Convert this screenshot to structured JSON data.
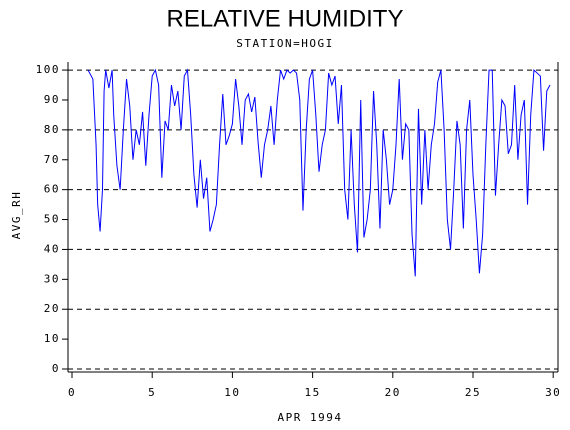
{
  "chart_data": {
    "type": "line",
    "title": "RELATIVE HUMIDITY",
    "subtitle": "STATION=HOGI",
    "xlabel": "APR 1994",
    "ylabel": "AVG_RH",
    "color": "#0000ff",
    "xlim": [
      -0.25,
      30.3
    ],
    "ylim": [
      -1,
      102.7
    ],
    "xticks": [
      0,
      5,
      10,
      15,
      20,
      25,
      30
    ],
    "yticks": [
      0,
      10,
      20,
      30,
      40,
      50,
      60,
      70,
      80,
      90,
      100
    ],
    "hlines": [
      0,
      20,
      40,
      60,
      80,
      100
    ],
    "x": [
      1.0,
      1.3,
      1.5,
      1.6,
      1.75,
      1.9,
      2.0,
      2.1,
      2.3,
      2.5,
      2.6,
      2.8,
      3.0,
      3.2,
      3.4,
      3.6,
      3.8,
      4.0,
      4.2,
      4.4,
      4.6,
      4.8,
      5.0,
      5.2,
      5.4,
      5.6,
      5.8,
      6.0,
      6.2,
      6.4,
      6.6,
      6.8,
      7.0,
      7.2,
      7.4,
      7.6,
      7.8,
      8.0,
      8.2,
      8.4,
      8.6,
      8.8,
      9.0,
      9.2,
      9.4,
      9.6,
      9.8,
      10.0,
      10.2,
      10.4,
      10.6,
      10.8,
      11.0,
      11.2,
      11.4,
      11.6,
      11.8,
      12.0,
      12.2,
      12.4,
      12.6,
      12.8,
      13.0,
      13.2,
      13.4,
      13.6,
      13.8,
      14.0,
      14.2,
      14.4,
      14.6,
      14.8,
      15.0,
      15.2,
      15.4,
      15.6,
      15.8,
      16.0,
      16.2,
      16.4,
      16.6,
      16.8,
      17.0,
      17.2,
      17.4,
      17.6,
      17.8,
      18.0,
      18.2,
      18.4,
      18.6,
      18.8,
      19.0,
      19.2,
      19.4,
      19.6,
      19.8,
      20.0,
      20.2,
      20.4,
      20.6,
      20.8,
      21.0,
      21.2,
      21.4,
      21.6,
      21.8,
      22.0,
      22.2,
      22.4,
      22.6,
      22.8,
      23.0,
      23.2,
      23.4,
      23.6,
      23.8,
      24.0,
      24.2,
      24.4,
      24.6,
      24.8,
      25.0,
      25.2,
      25.4,
      25.6,
      25.8,
      26.0,
      26.2,
      26.4,
      26.6,
      26.8,
      27.0,
      27.2,
      27.4,
      27.6,
      27.8,
      28.0,
      28.2,
      28.4,
      28.6,
      28.8,
      29.0,
      29.2,
      29.4,
      29.6,
      29.8
    ],
    "values": [
      100,
      97,
      75,
      55,
      46,
      60,
      93,
      100,
      94,
      100,
      85,
      68,
      60,
      80,
      97,
      88,
      70,
      80,
      75,
      86,
      68,
      85,
      98,
      100,
      95,
      64,
      83,
      80,
      95,
      88,
      93,
      80,
      98,
      100,
      85,
      65,
      54,
      70,
      57,
      64,
      46,
      50,
      55,
      75,
      92,
      75,
      78,
      82,
      97,
      88,
      75,
      90,
      92,
      86,
      91,
      76,
      64,
      75,
      80,
      88,
      75,
      90,
      100,
      97,
      100,
      99,
      100,
      99,
      90,
      53,
      80,
      97,
      100,
      85,
      66,
      75,
      80,
      99,
      95,
      98,
      82,
      95,
      60,
      50,
      80,
      55,
      39,
      90,
      44,
      50,
      60,
      93,
      75,
      47,
      80,
      70,
      55,
      60,
      75,
      97,
      70,
      82,
      80,
      45,
      31,
      87,
      55,
      80,
      60,
      75,
      82,
      96,
      100,
      80,
      50,
      40,
      60,
      83,
      75,
      47,
      80,
      90,
      65,
      50,
      32,
      45,
      75,
      100,
      100,
      58,
      75,
      90,
      88,
      72,
      75,
      95,
      70,
      85,
      90,
      55,
      85,
      100,
      99,
      98,
      73,
      93,
      95
    ]
  }
}
